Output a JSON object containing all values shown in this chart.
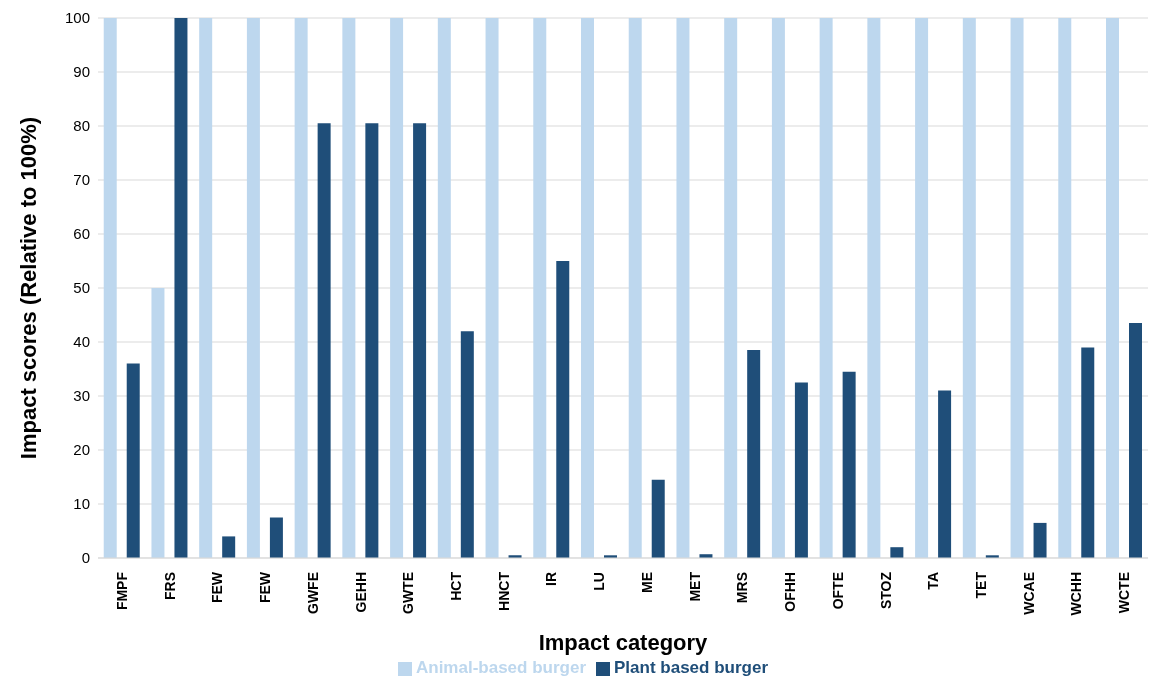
{
  "chart_data": {
    "type": "bar",
    "xlabel": "Impact category",
    "ylabel": "Impact scores (Relative to 100%)",
    "categories": [
      "FMPF",
      "FRS",
      "FEW",
      "FEW",
      "GWFE",
      "GEHH",
      "GWTE",
      "HCT",
      "HNCT",
      "IR",
      "LU",
      "ME",
      "MET",
      "MRS",
      "OFHH",
      "OFTE",
      "STOZ",
      "TA",
      "TET",
      "WCAE",
      "WCHH",
      "WCTE"
    ],
    "series": [
      {
        "name": "Animal-based burger",
        "color": "#bdd7ee",
        "values": [
          100,
          50,
          100,
          100,
          100,
          100,
          100,
          100,
          100,
          100,
          100,
          100,
          100,
          100,
          100,
          100,
          100,
          100,
          100,
          100,
          100,
          100
        ]
      },
      {
        "name": "Plant based burger",
        "color": "#1f4e79",
        "values": [
          36,
          100,
          4,
          7.5,
          80.5,
          80.5,
          80.5,
          42,
          0.5,
          55,
          0.5,
          14.5,
          0.7,
          38.5,
          32.5,
          34.5,
          2,
          31,
          0.5,
          6.5,
          39,
          43.5
        ]
      }
    ],
    "ylim": [
      0,
      100
    ],
    "yticks": [
      0,
      10,
      20,
      30,
      40,
      50,
      60,
      70,
      80,
      90,
      100
    ],
    "grid": "y",
    "legend": "bottom"
  }
}
